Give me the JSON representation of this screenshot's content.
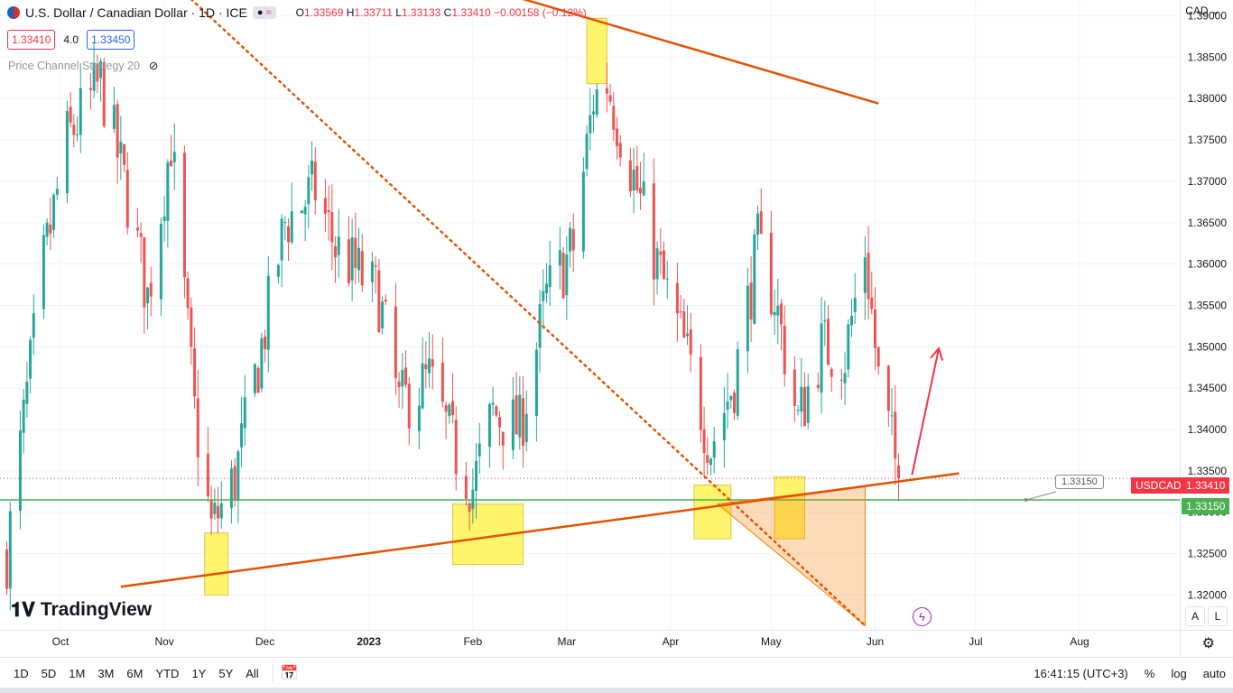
{
  "header": {
    "symbol": "U.S. Dollar / Canadian Dollar · 1D · ICE",
    "open": "1.33569",
    "high": "1.33711",
    "low": "1.33133",
    "close": "1.33410",
    "change": "−0.00158 (−0.12%)",
    "compare_label": "≈"
  },
  "quotes": {
    "sell": "1.33410",
    "spread": "4.0",
    "buy": "1.33450"
  },
  "indicator": {
    "name": "Price Channel Strategy 20"
  },
  "currency": "CAD ⌄",
  "badges": {
    "usdcad_label": "USDCAD",
    "usdcad_value": "1.33410",
    "level_value": "1.33150",
    "callout": "1.33150"
  },
  "logo_text": "TradingView",
  "scale_buttons": {
    "auto_fit": "A",
    "log": "L"
  },
  "bottom": {
    "timeframes": [
      "1D",
      "5D",
      "1M",
      "3M",
      "6M",
      "YTD",
      "1Y",
      "5Y",
      "All"
    ],
    "clock": "16:41:15 (UTC+3)",
    "percent": "%",
    "log": "log",
    "auto": "auto"
  },
  "chart_data": {
    "type": "candlestick",
    "title": "U.S. Dollar / Canadian Dollar · 1D · ICE",
    "y_axis_ticks": [
      1.32,
      1.325,
      1.33,
      1.335,
      1.34,
      1.345,
      1.35,
      1.355,
      1.36,
      1.365,
      1.37,
      1.375,
      1.38,
      1.385,
      1.39
    ],
    "ylim": [
      1.3163,
      1.3913
    ],
    "x_axis_ticks": [
      "Oct",
      "Nov",
      "Dec",
      "2023",
      "Feb",
      "Mar",
      "Apr",
      "May",
      "Jun",
      "Jul",
      "Aug"
    ],
    "x_tick_dates": [
      "2022-10-01",
      "2022-11-01",
      "2022-12-01",
      "2023-01-01",
      "2023-02-01",
      "2023-03-01",
      "2023-04-01",
      "2023-05-01",
      "2023-06-01",
      "2023-07-01",
      "2023-08-01"
    ],
    "colors": {
      "up": "#26a69a",
      "down": "#ef5350",
      "trend": "#e65100",
      "box": "#ffeb3b",
      "level": "#4caf50",
      "arrow": "#f23645"
    },
    "keypoints": [
      {
        "date": "2022-09-15",
        "close": 1.325
      },
      {
        "date": "2022-09-26",
        "close": 1.36
      },
      {
        "date": "2022-10-03",
        "close": 1.375
      },
      {
        "date": "2022-10-13",
        "close": 1.382
      },
      {
        "date": "2022-10-21",
        "close": 1.368
      },
      {
        "date": "2022-10-27",
        "close": 1.356
      },
      {
        "date": "2022-11-03",
        "close": 1.375
      },
      {
        "date": "2022-11-10",
        "close": 1.342
      },
      {
        "date": "2022-11-15",
        "close": 1.328
      },
      {
        "date": "2022-11-22",
        "close": 1.334
      },
      {
        "date": "2022-11-29",
        "close": 1.348
      },
      {
        "date": "2022-12-07",
        "close": 1.365
      },
      {
        "date": "2022-12-16",
        "close": 1.369
      },
      {
        "date": "2022-12-22",
        "close": 1.362
      },
      {
        "date": "2023-01-04",
        "close": 1.356
      },
      {
        "date": "2023-01-10",
        "close": 1.343
      },
      {
        "date": "2023-01-19",
        "close": 1.346
      },
      {
        "date": "2023-01-26",
        "close": 1.338
      },
      {
        "date": "2023-02-01",
        "close": 1.333
      },
      {
        "date": "2023-02-07",
        "close": 1.342
      },
      {
        "date": "2023-02-15",
        "close": 1.34
      },
      {
        "date": "2023-02-23",
        "close": 1.356
      },
      {
        "date": "2023-03-03",
        "close": 1.362
      },
      {
        "date": "2023-03-09",
        "close": 1.38
      },
      {
        "date": "2023-03-13",
        "close": 1.382
      },
      {
        "date": "2023-03-20",
        "close": 1.372
      },
      {
        "date": "2023-03-28",
        "close": 1.36
      },
      {
        "date": "2023-04-05",
        "close": 1.35
      },
      {
        "date": "2023-04-13",
        "close": 1.338
      },
      {
        "date": "2023-04-20",
        "close": 1.346
      },
      {
        "date": "2023-04-27",
        "close": 1.362
      },
      {
        "date": "2023-05-02",
        "close": 1.356
      },
      {
        "date": "2023-05-09",
        "close": 1.341
      },
      {
        "date": "2023-05-16",
        "close": 1.35
      },
      {
        "date": "2023-05-23",
        "close": 1.349
      },
      {
        "date": "2023-05-29",
        "close": 1.362
      },
      {
        "date": "2023-06-02",
        "close": 1.346
      },
      {
        "date": "2023-06-08",
        "close": 1.3341
      }
    ],
    "trendlines": [
      {
        "name": "upper-resistance",
        "start": [
          "2023-01-22",
          1.395
        ],
        "end": [
          "2023-06-02",
          1.3794
        ],
        "style": "solid"
      },
      {
        "name": "ascending-support",
        "start": [
          "2022-10-19",
          1.321
        ],
        "end": [
          "2023-06-26",
          1.3347
        ],
        "style": "solid"
      },
      {
        "name": "descending-dotted",
        "start": [
          "2022-11-09",
          1.392
        ],
        "end": [
          "2023-05-29",
          1.3163
        ],
        "style": "dotted"
      }
    ],
    "boxes": [
      {
        "from": "2022-11-13",
        "to": "2022-11-20",
        "ymin": 1.32,
        "ymax": 1.3275
      },
      {
        "from": "2023-01-26",
        "to": "2023-02-16",
        "ymin": 1.3237,
        "ymax": 1.331
      },
      {
        "from": "2023-03-07",
        "to": "2023-03-13",
        "ymin": 1.3818,
        "ymax": 1.3897
      },
      {
        "from": "2023-04-08",
        "to": "2023-04-19",
        "ymin": 1.3268,
        "ymax": 1.3333
      },
      {
        "from": "2023-05-02",
        "to": "2023-05-11",
        "ymin": 1.3268,
        "ymax": 1.3343
      }
    ],
    "projection_arrow": {
      "start": [
        "2023-06-12",
        1.3345
      ],
      "end": [
        "2023-06-20",
        1.3498
      ]
    },
    "level": 1.3315,
    "last_price": 1.3341
  }
}
